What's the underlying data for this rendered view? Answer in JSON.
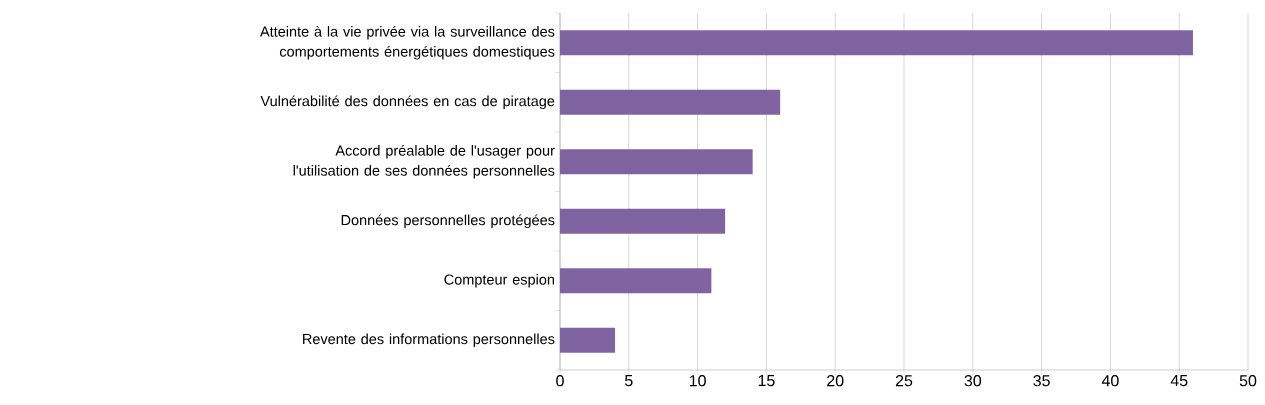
{
  "chart_data": {
    "type": "bar",
    "orientation": "horizontal",
    "categories": [
      "Atteinte à la vie privée via la surveillance des comportements énergétiques domestiques",
      "Vulnérabilité des données en cas de piratage",
      "Accord préalable de l'usager pour l'utilisation de ses données personnelles",
      "Données personnelles protégées",
      "Compteur espion",
      "Revente des informations personnelles"
    ],
    "values": [
      46,
      16,
      14,
      12,
      11,
      4
    ],
    "color": "#8064a2",
    "xlim": [
      0,
      50
    ],
    "xticks": [
      0,
      5,
      10,
      15,
      20,
      25,
      30,
      35,
      40,
      45,
      50
    ],
    "grid": "x"
  }
}
